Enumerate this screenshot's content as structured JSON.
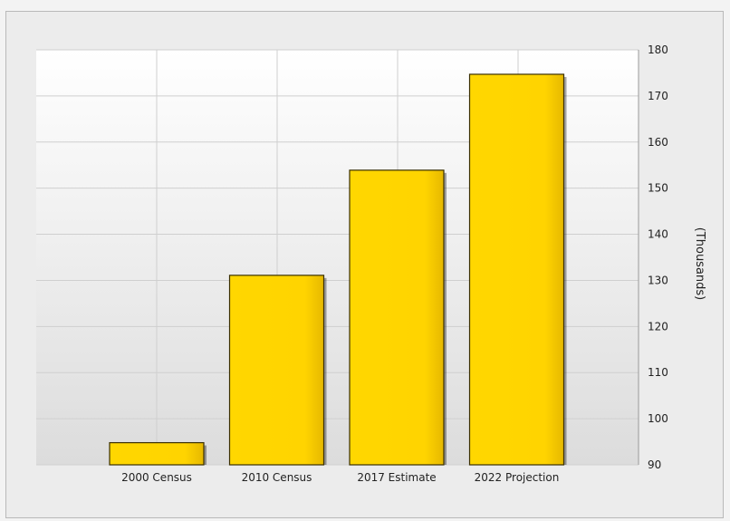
{
  "chart_data": {
    "type": "bar",
    "categories": [
      "2000 Census",
      "2010 Census",
      "2017 Estimate",
      "2022 Projection"
    ],
    "values": [
      94.8,
      131.1,
      153.9,
      174.7
    ],
    "ylabel": "(Thousands)",
    "ylim": [
      90,
      180
    ],
    "yticks": [
      90,
      100,
      110,
      120,
      130,
      140,
      150,
      160,
      170,
      180
    ],
    "y_axis_side": "right",
    "grid": true,
    "legend": "none",
    "colors": {
      "bar_fill": "#ffd700",
      "bar_edge": "#3a2f00",
      "plot_top": "#ffffff",
      "plot_bottom": "#dcdcdc",
      "grid": "#cfcfcf",
      "frame_bg": "#ececec"
    }
  }
}
